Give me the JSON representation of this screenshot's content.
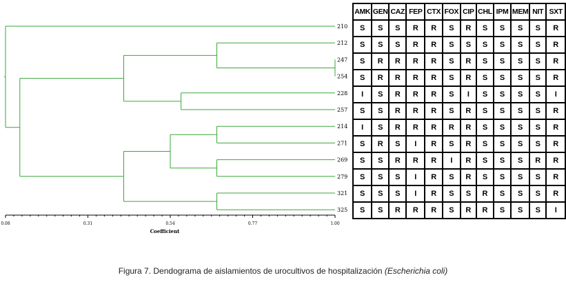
{
  "dendrogram": {
    "leaves": [
      "210",
      "212",
      "247",
      "254",
      "228",
      "257",
      "214",
      "271",
      "269",
      "279",
      "321",
      "325"
    ],
    "axis_ticks": [
      "0.08",
      "0.31",
      "0.54",
      "0.77",
      "1.00"
    ],
    "axis_title": "Coefficient",
    "branch_color": "#3aa63a",
    "merges": [
      {
        "a": "247",
        "b": "254",
        "coef": 1.0
      },
      {
        "a": "212",
        "b": "247-254",
        "coef": 0.67
      },
      {
        "a": "228",
        "b": "257",
        "coef": 0.57
      },
      {
        "a": "212-254",
        "b": "228-257",
        "coef": 0.41
      },
      {
        "a": "214",
        "b": "271",
        "coef": 0.67
      },
      {
        "a": "269",
        "b": "279",
        "coef": 0.67
      },
      {
        "a": "214-271",
        "b": "269-279",
        "coef": 0.54
      },
      {
        "a": "321",
        "b": "325",
        "coef": 0.67
      },
      {
        "a": "214-279",
        "b": "321-325",
        "coef": 0.41
      },
      {
        "a": "212-257",
        "b": "214-325",
        "coef": 0.12
      },
      {
        "a": "210",
        "b": "212-325",
        "coef": 0.08
      }
    ]
  },
  "table": {
    "headers": [
      "AMK",
      "GEN",
      "CAZ",
      "FEP",
      "CTX",
      "FOX",
      "CIP",
      "CHL",
      "IPM",
      "MEM",
      "NIT",
      "SXT"
    ],
    "rows": [
      [
        "S",
        "S",
        "S",
        "R",
        "R",
        "S",
        "R",
        "S",
        "S",
        "S",
        "S",
        "R"
      ],
      [
        "S",
        "S",
        "S",
        "R",
        "R",
        "S",
        "S",
        "S",
        "S",
        "S",
        "S",
        "R"
      ],
      [
        "S",
        "R",
        "R",
        "R",
        "R",
        "S",
        "R",
        "S",
        "S",
        "S",
        "S",
        "R"
      ],
      [
        "S",
        "R",
        "R",
        "R",
        "R",
        "S",
        "R",
        "S",
        "S",
        "S",
        "S",
        "R"
      ],
      [
        "I",
        "S",
        "R",
        "R",
        "R",
        "S",
        "I",
        "S",
        "S",
        "S",
        "S",
        "I"
      ],
      [
        "S",
        "S",
        "R",
        "R",
        "R",
        "S",
        "R",
        "S",
        "S",
        "S",
        "S",
        "R"
      ],
      [
        "I",
        "S",
        "R",
        "R",
        "R",
        "R",
        "R",
        "S",
        "S",
        "S",
        "S",
        "R"
      ],
      [
        "S",
        "R",
        "S",
        "I",
        "R",
        "S",
        "R",
        "S",
        "S",
        "S",
        "S",
        "R"
      ],
      [
        "S",
        "S",
        "R",
        "R",
        "R",
        "I",
        "R",
        "S",
        "S",
        "S",
        "R",
        "R"
      ],
      [
        "S",
        "S",
        "S",
        "I",
        "R",
        "S",
        "R",
        "S",
        "S",
        "S",
        "S",
        "R"
      ],
      [
        "S",
        "S",
        "S",
        "I",
        "R",
        "S",
        "S",
        "R",
        "S",
        "S",
        "S",
        "R"
      ],
      [
        "S",
        "S",
        "R",
        "R",
        "R",
        "S",
        "R",
        "R",
        "S",
        "S",
        "S",
        "I"
      ]
    ]
  },
  "caption": {
    "text": "Figura 7. Dendograma de aislamientos de urocultivos de hospitalización ",
    "italic": "(Escherichia coli)"
  }
}
